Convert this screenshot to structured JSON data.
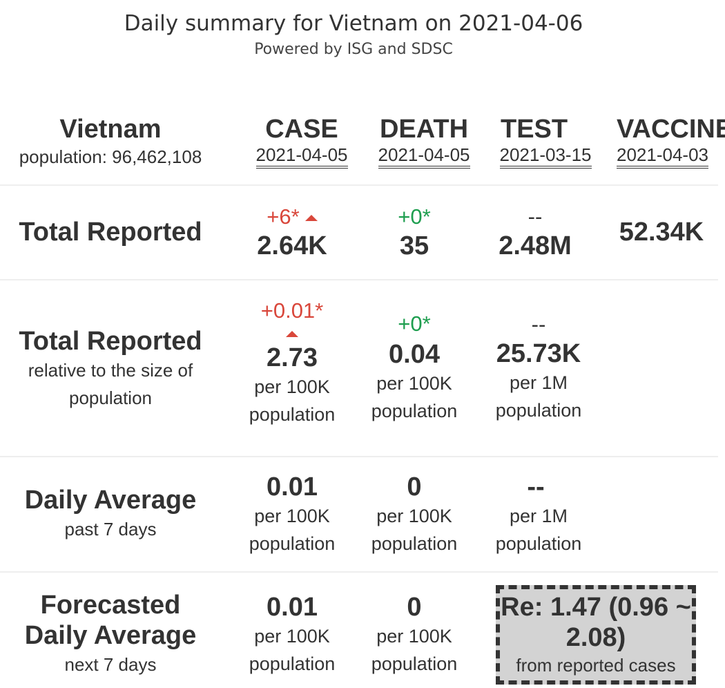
{
  "header": {
    "title": "Daily summary for Vietnam on 2021-04-06",
    "subtitle": "Powered by ISG and SDSC"
  },
  "country": {
    "name": "Vietnam",
    "population_label": "population: 96,462,108"
  },
  "columns": [
    {
      "label": "CASE",
      "date": "2021-04-05"
    },
    {
      "label": "DEATH",
      "date": "2021-04-05"
    },
    {
      "label": "TEST",
      "date": "2021-03-15"
    },
    {
      "label": "VACCINE",
      "date": "2021-04-03"
    }
  ],
  "rows": {
    "total": {
      "label": "Total Reported",
      "case": {
        "change": "+6*",
        "value": "2.64K"
      },
      "death": {
        "change": "+0*",
        "value": "35"
      },
      "test": {
        "change": "--",
        "value": "2.48M"
      },
      "vaccine": {
        "value": "52.34K"
      }
    },
    "relative": {
      "label": "Total Reported",
      "sublabel": "relative to the size of population",
      "case": {
        "change": "+0.01*",
        "value": "2.73",
        "unit": "per 100K population"
      },
      "death": {
        "change": "+0*",
        "value": "0.04",
        "unit": "per 100K population"
      },
      "test": {
        "change": "--",
        "value": "25.73K",
        "unit": "per 1M population"
      }
    },
    "daily": {
      "label": "Daily Average",
      "sublabel": "past 7 days",
      "case": {
        "value": "0.01",
        "unit": "per 100K population"
      },
      "death": {
        "value": "0",
        "unit": "per 100K population"
      },
      "test": {
        "value": "--",
        "unit": "per 1M population"
      }
    },
    "forecast": {
      "label": "Forecasted Daily Average",
      "sublabel": "next 7 days",
      "case": {
        "value": "0.01",
        "unit": "per 100K population"
      },
      "death": {
        "value": "0",
        "unit": "per 100K population"
      },
      "re": {
        "value": "Re: 1.47 (0.96 ~ 2.08)",
        "note": "from reported cases"
      }
    }
  },
  "colors": {
    "increase": "#d9473b",
    "no_change": "#1e9e4f",
    "re_box_bg": "#d3d3d3"
  }
}
